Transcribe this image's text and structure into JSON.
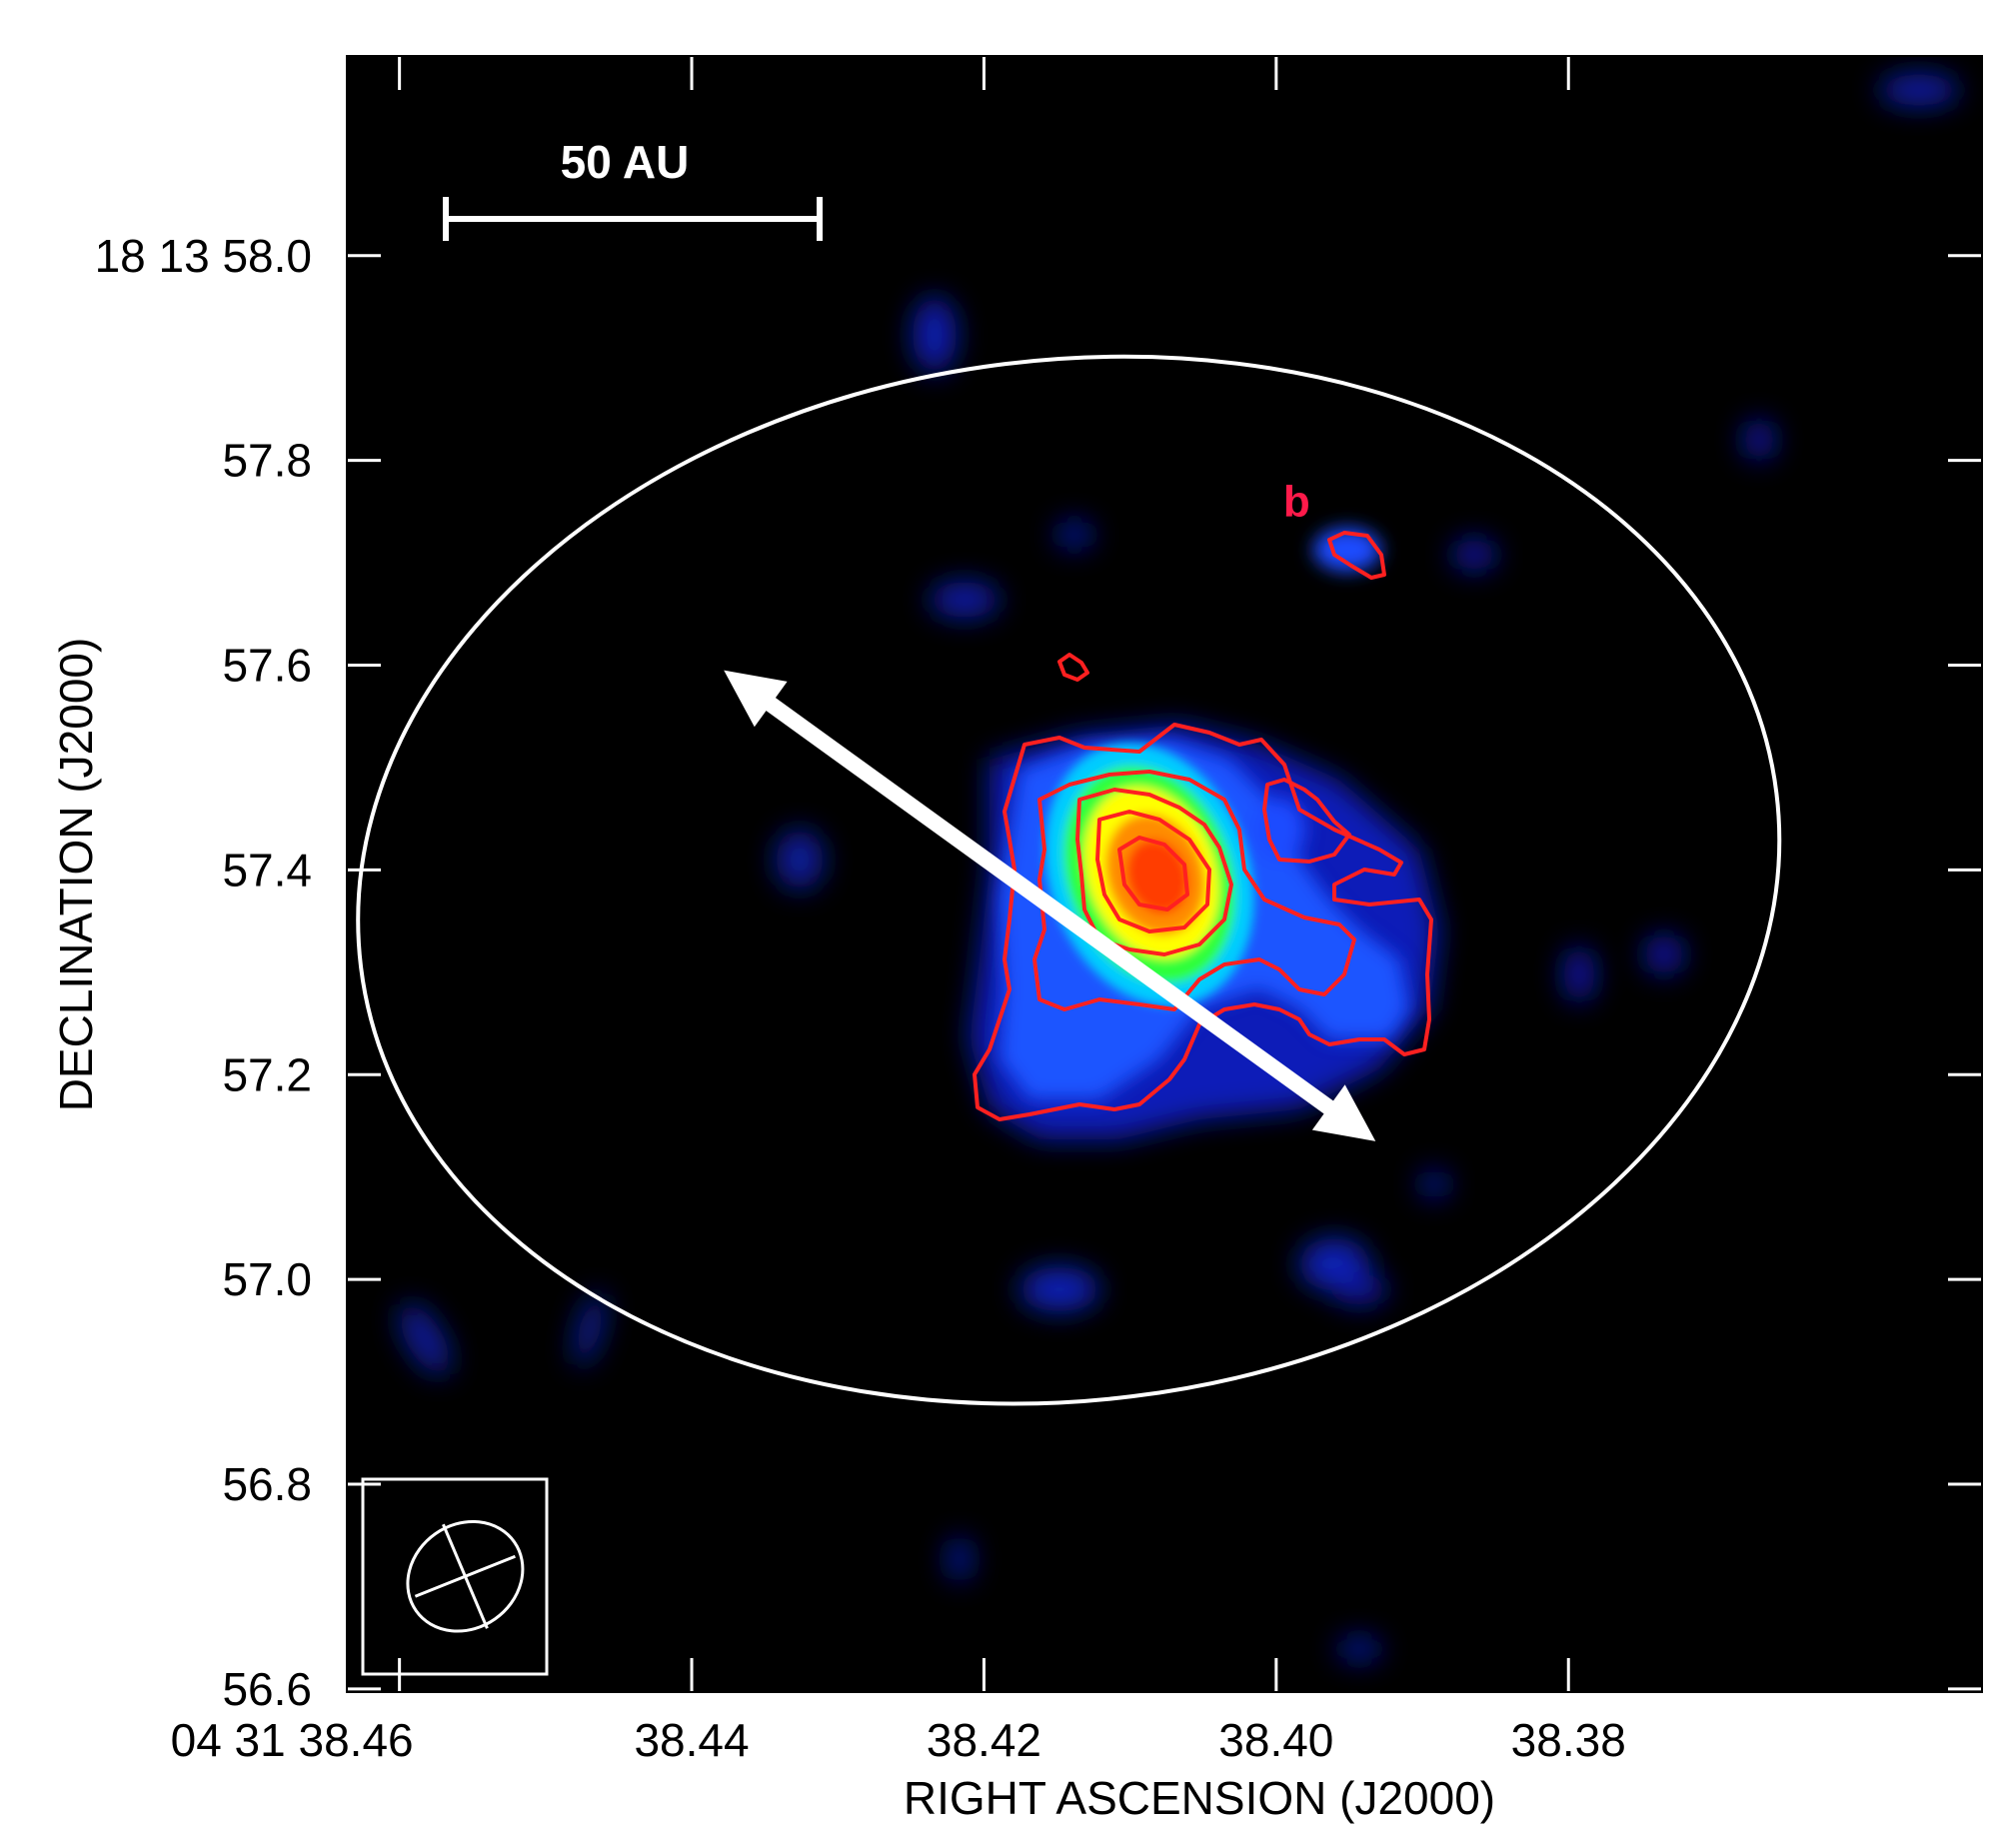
{
  "chart_data": {
    "type": "heatmap",
    "title": "",
    "xlabel": "RIGHT ASCENSION (J2000)",
    "ylabel": "DECLINATION (J2000)",
    "x_ticks": [
      {
        "value": 38.46,
        "label": "04 31 38.46"
      },
      {
        "value": 38.44,
        "label": "38.44"
      },
      {
        "value": 38.42,
        "label": "38.42"
      },
      {
        "value": 38.4,
        "label": "38.40"
      },
      {
        "value": 38.38,
        "label": "38.38"
      }
    ],
    "y_ticks": [
      {
        "value": 58.0,
        "label": "18 13 58.0"
      },
      {
        "value": 57.8,
        "label": "57.8"
      },
      {
        "value": 57.6,
        "label": "57.6"
      },
      {
        "value": 57.4,
        "label": "57.4"
      },
      {
        "value": 57.2,
        "label": "57.2"
      },
      {
        "value": 57.0,
        "label": "57.0"
      },
      {
        "value": 56.8,
        "label": "56.8"
      },
      {
        "value": 56.6,
        "label": "56.6"
      }
    ],
    "xlim": [
      38.4636,
      38.3517
    ],
    "ylim": [
      56.597,
      58.195
    ],
    "scale_bar": {
      "label": "50 AU"
    },
    "annotations": [
      {
        "label": "b",
        "ra": 38.3986,
        "dec": 57.76
      }
    ],
    "sources": [
      {
        "name": "peak",
        "ra": 38.4185,
        "dec": 57.385,
        "peak_level": 1.0
      },
      {
        "name": "b",
        "ra": 38.399,
        "dec": 57.705,
        "peak_level": 0.25
      }
    ],
    "contour_levels": 5,
    "arrow": {
      "from": {
        "ra": 38.4378,
        "dec": 57.595
      },
      "to": {
        "ra": 38.3932,
        "dec": 57.135
      }
    },
    "ellipse": {
      "center": {
        "ra": 38.4142,
        "dec": 57.39
      },
      "ra_semi_axis": 0.0488,
      "dec_semi_axis": 0.508
    },
    "beam": {
      "ra": 38.4555,
      "dec": 56.71
    },
    "colors": {
      "background": "#000000",
      "contour": "#ff2020",
      "overlay": "#ffffff",
      "colormap": [
        "#000000",
        "#0a20c8",
        "#1e5aff",
        "#00e0ff",
        "#30ff30",
        "#ffff00",
        "#ff8000",
        "#ff2000"
      ]
    }
  }
}
